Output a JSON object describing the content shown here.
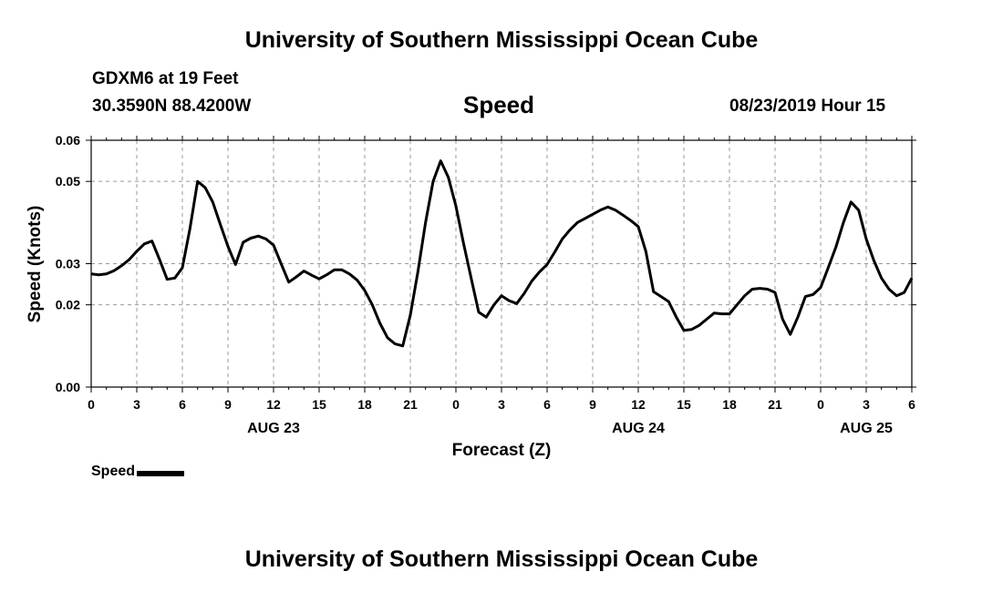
{
  "header": {
    "title": "University of Southern Mississippi Ocean Cube",
    "station": "GDXM6 at 19 Feet",
    "coordinates": "30.3590N 88.4200W",
    "datetime": "08/23/2019 Hour 15"
  },
  "footer": {
    "title": "University of Southern Mississippi Ocean Cube"
  },
  "legend": {
    "label": "Speed"
  },
  "chart_data": {
    "type": "line",
    "title": "Speed",
    "xlabel": "Forecast (Z)",
    "ylabel": "Speed (Knots)",
    "xlim": [
      0,
      54
    ],
    "ylim": [
      0,
      0.06
    ],
    "x_unit": "hours since 00Z Aug 23",
    "x_ticks": [
      0,
      3,
      6,
      9,
      12,
      15,
      18,
      21,
      24,
      27,
      30,
      33,
      36,
      39,
      42,
      45,
      48,
      51,
      54
    ],
    "x_tick_labels": [
      "0",
      "3",
      "6",
      "9",
      "12",
      "15",
      "18",
      "21",
      "0",
      "3",
      "6",
      "9",
      "12",
      "15",
      "18",
      "21",
      "0",
      "3",
      "6"
    ],
    "y_ticks": [
      0,
      0.02,
      0.03,
      0.05,
      0.06
    ],
    "y_tick_labels": [
      "0.00",
      "0.02",
      "0.03",
      "0.05",
      "0.06"
    ],
    "date_labels": [
      {
        "x": 12,
        "label": "AUG 23"
      },
      {
        "x": 36,
        "label": "AUG 24"
      },
      {
        "x": 51,
        "label": "AUG 25"
      }
    ],
    "grid": true,
    "line_color": "#000000",
    "series": [
      {
        "name": "Speed",
        "x": [
          0,
          0.5,
          1,
          1.5,
          2,
          2.5,
          3,
          3.5,
          4,
          4.5,
          5,
          5.5,
          6,
          6.5,
          7,
          7.5,
          8,
          8.5,
          9,
          9.5,
          10,
          10.5,
          11,
          11.5,
          12,
          12.5,
          13,
          13.5,
          14,
          14.5,
          15,
          15.5,
          16,
          16.5,
          17,
          17.5,
          18,
          18.5,
          19,
          19.5,
          20,
          20.5,
          21,
          21.5,
          22,
          22.5,
          23,
          23.5,
          24,
          24.5,
          25,
          25.5,
          26,
          26.5,
          27,
          27.5,
          28,
          28.5,
          29,
          29.5,
          30,
          30.5,
          31,
          31.5,
          32,
          32.5,
          33,
          33.5,
          34,
          34.5,
          35,
          35.5,
          36,
          36.5,
          37,
          37.5,
          38,
          38.5,
          39,
          39.5,
          40,
          40.5,
          41,
          41.5,
          42,
          42.5,
          43,
          43.5,
          44,
          44.5,
          45,
          45.5,
          46,
          46.5,
          47,
          47.5,
          48,
          48.5,
          49,
          49.5,
          50,
          50.5,
          51,
          51.5,
          52,
          52.5,
          53,
          53.5,
          54
        ],
        "values": [
          0.0275,
          0.0273,
          0.0275,
          0.0283,
          0.0295,
          0.031,
          0.033,
          0.0348,
          0.0355,
          0.031,
          0.0262,
          0.0265,
          0.029,
          0.0385,
          0.05,
          0.0485,
          0.045,
          0.0395,
          0.0342,
          0.0298,
          0.0352,
          0.0362,
          0.0367,
          0.036,
          0.0345,
          0.03,
          0.0255,
          0.0268,
          0.0282,
          0.0272,
          0.0263,
          0.0273,
          0.0285,
          0.0285,
          0.0275,
          0.026,
          0.0235,
          0.02,
          0.0155,
          0.012,
          0.0105,
          0.01,
          0.0175,
          0.028,
          0.04,
          0.05,
          0.055,
          0.051,
          0.044,
          0.035,
          0.0265,
          0.0182,
          0.017,
          0.02,
          0.0222,
          0.021,
          0.0203,
          0.0228,
          0.0258,
          0.028,
          0.0298,
          0.0328,
          0.036,
          0.0382,
          0.04,
          0.041,
          0.042,
          0.043,
          0.0438,
          0.043,
          0.0418,
          0.0405,
          0.039,
          0.033,
          0.0232,
          0.022,
          0.0208,
          0.017,
          0.0138,
          0.014,
          0.015,
          0.0165,
          0.018,
          0.0178,
          0.0178,
          0.02,
          0.0222,
          0.0238,
          0.024,
          0.0238,
          0.023,
          0.0165,
          0.0128,
          0.017,
          0.022,
          0.0225,
          0.0242,
          0.029,
          0.034,
          0.04,
          0.045,
          0.043,
          0.036,
          0.0308,
          0.0265,
          0.0238,
          0.0222,
          0.023,
          0.0265
        ]
      }
    ]
  }
}
